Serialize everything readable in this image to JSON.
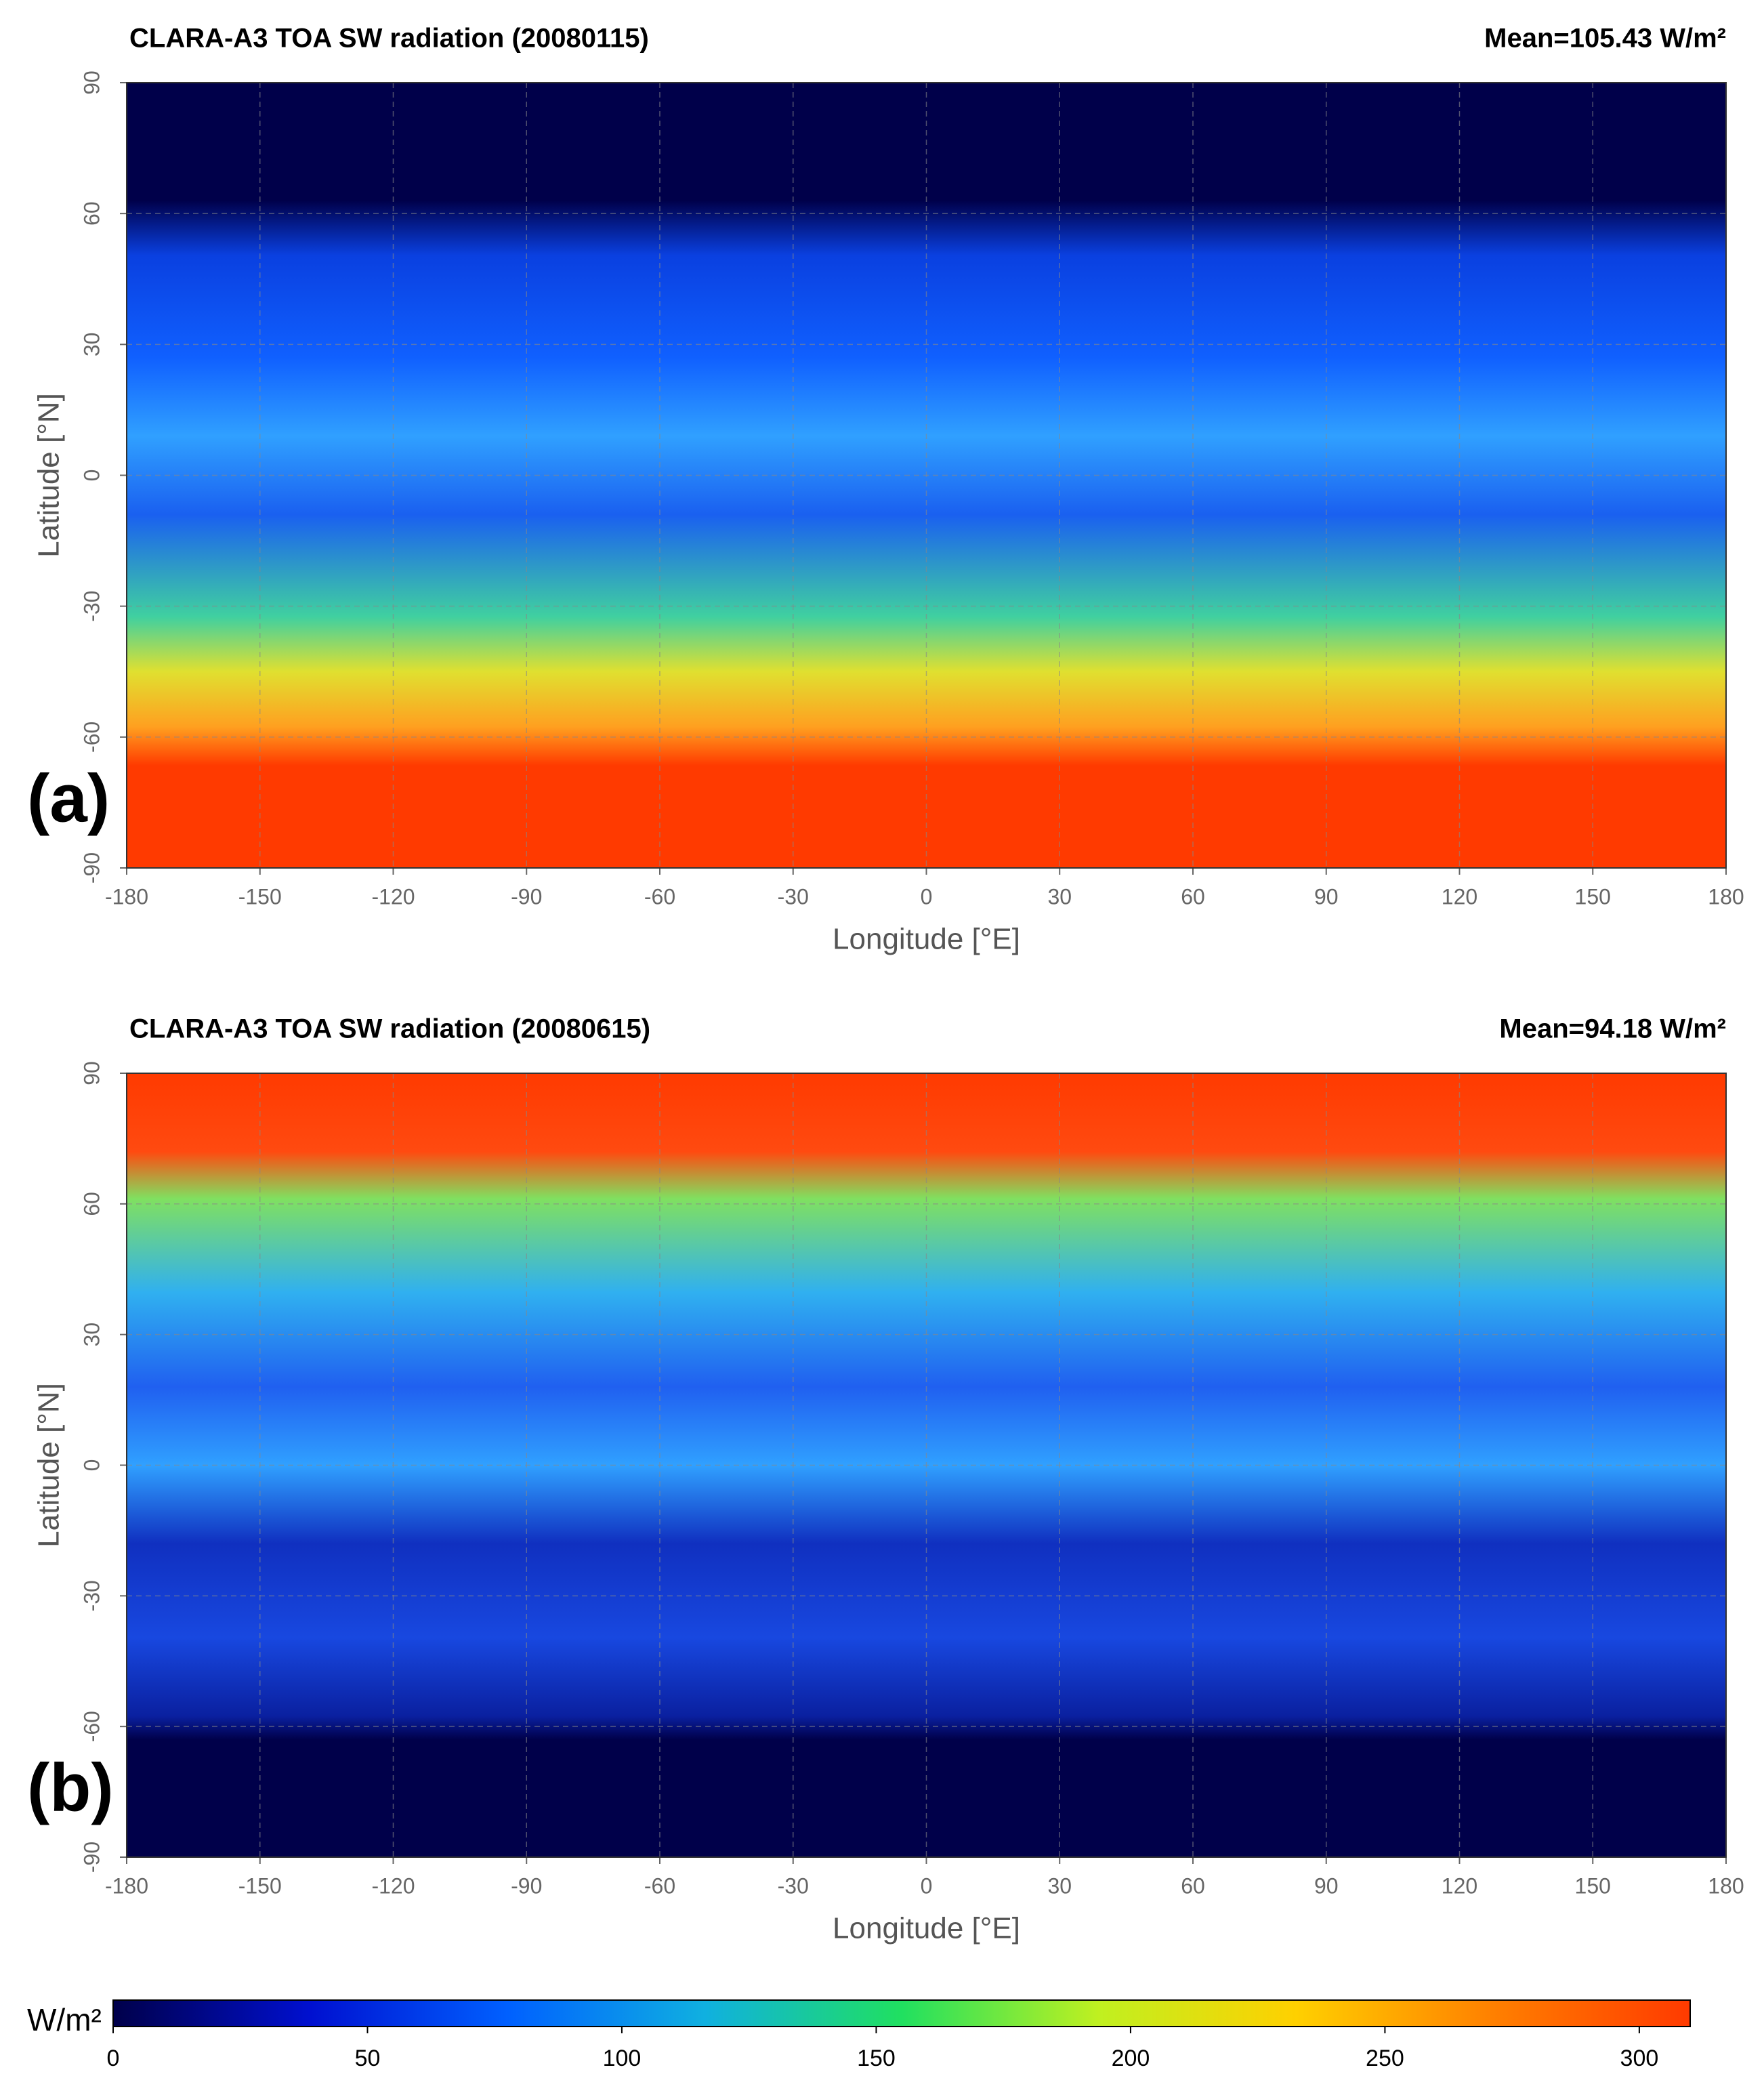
{
  "chart_data": [
    {
      "type": "heatmap",
      "title": "CLARA-A3 TOA SW radiation (20080115)",
      "annotation": "Mean=105.43 W/m²",
      "annotation_color": "#ff0000",
      "panel_label": "(a)",
      "xlabel": "Longitude [°E]",
      "ylabel": "Latitude [°N]",
      "xlim": [
        -180,
        180
      ],
      "ylim": [
        -90,
        90
      ],
      "xticks": [
        -180,
        -150,
        -120,
        -90,
        -60,
        -30,
        0,
        30,
        60,
        90,
        120,
        150,
        180
      ],
      "yticks": [
        -90,
        -60,
        -30,
        0,
        30,
        60,
        90
      ],
      "grid": true
    },
    {
      "type": "heatmap",
      "title": "CLARA-A3 TOA SW radiation (20080615)",
      "annotation": "Mean=94.18 W/m²",
      "annotation_color": "#ff0000",
      "panel_label": "(b)",
      "xlabel": "Longitude [°E]",
      "ylabel": "Latitude [°N]",
      "xlim": [
        -180,
        180
      ],
      "ylim": [
        -90,
        90
      ],
      "xticks": [
        -180,
        -150,
        -120,
        -90,
        -60,
        -30,
        0,
        30,
        60,
        90,
        120,
        150,
        180
      ],
      "yticks": [
        -90,
        -60,
        -30,
        0,
        30,
        60,
        90
      ],
      "grid": true
    }
  ],
  "colorbar": {
    "label": "W/m²",
    "lim": [
      0,
      310
    ],
    "ticks": [
      0,
      50,
      100,
      150,
      200,
      250,
      300
    ],
    "colors": [
      "#00004a",
      "#0010d0",
      "#0060ff",
      "#10b0e0",
      "#20e060",
      "#c0f020",
      "#ffd000",
      "#ff8000",
      "#ff3a00"
    ]
  }
}
